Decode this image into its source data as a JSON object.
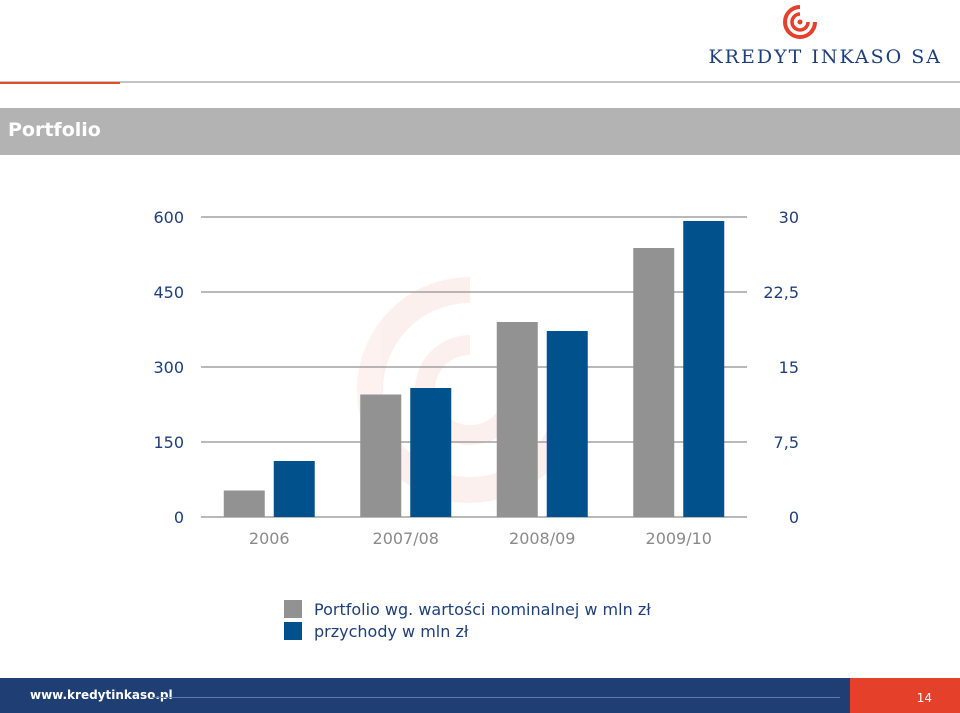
{
  "header": {
    "brand": "KREDYT INKASO SA",
    "logo_icon": "kredyt-inkaso-swirl-icon"
  },
  "title": "Portfolio",
  "colors": {
    "grey_series": "#929292",
    "blue_series": "#00518c",
    "brand_blue": "#1e3e74",
    "brand_red": "#e4402a"
  },
  "chart_data": {
    "type": "bar",
    "categories": [
      "2006",
      "2007/08",
      "2008/09",
      "2009/10"
    ],
    "series": [
      {
        "name": "Portfolio wg. wartości nominalnej w mln zł",
        "axis": "left",
        "color": "#929292",
        "values": [
          53,
          245,
          390,
          538
        ]
      },
      {
        "name": "przychody w mln zł",
        "axis": "right",
        "color": "#00518c",
        "values": [
          5.6,
          12.9,
          18.6,
          29.6
        ]
      }
    ],
    "y_left": {
      "ticks": [
        "0",
        "150",
        "300",
        "450",
        "600"
      ],
      "ylim": [
        0,
        600
      ]
    },
    "y_right": {
      "ticks": [
        "0",
        "7,5",
        "15",
        "22,5",
        "30"
      ],
      "ylim": [
        0,
        30
      ]
    },
    "grid": true,
    "legend_position": "bottom"
  },
  "footer": {
    "url": "www.kredytinkaso.pl",
    "page_number": "14"
  }
}
